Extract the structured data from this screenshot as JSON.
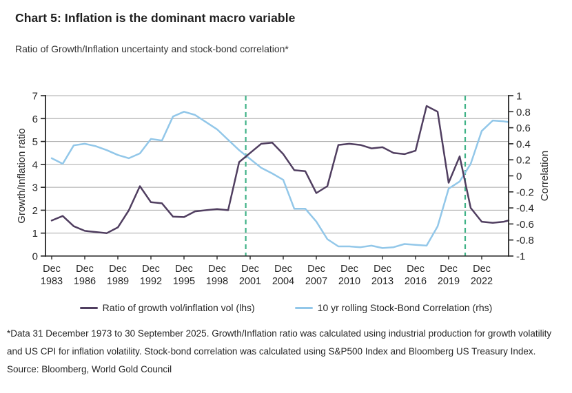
{
  "title": "Chart 5: Inflation is the dominant macro variable",
  "subtitle": "Ratio of Growth/Inflation uncertainty and stock-bond correlation*",
  "footnote": "*Data 31 December 1973 to 30 September 2025. Growth/Inflation ratio was calculated using industrial production for growth volatility and US CPI for inflation volatility. Stock-bond correlation was calculated using S&P500 Index and Bloomberg US Treasury Index.",
  "source": "Source: Bloomberg, World Gold Council",
  "colors": {
    "ratio_line": "#503e60",
    "correlation_line": "#92c7e9",
    "event_line": "#3fb287",
    "gridline": "#a8a8a8",
    "axis": "#262626",
    "text": "#262626"
  },
  "chart_data": {
    "type": "line",
    "x_unit": "December observation of each year; final point is 30 September 2025 (x = 2024.75)",
    "x": [
      1983,
      1984,
      1985,
      1986,
      1987,
      1988,
      1989,
      1990,
      1991,
      1992,
      1993,
      1994,
      1995,
      1996,
      1997,
      1998,
      1999,
      2000,
      2001,
      2002,
      2003,
      2004,
      2005,
      2006,
      2007,
      2008,
      2009,
      2010,
      2011,
      2012,
      2013,
      2014,
      2015,
      2016,
      2017,
      2018,
      2019,
      2020,
      2021,
      2022,
      2023,
      2024,
      2024.75
    ],
    "dates": [
      "Dec 1983",
      "Dec 1984",
      "Dec 1985",
      "Dec 1986",
      "Dec 1987",
      "Dec 1988",
      "Dec 1989",
      "Dec 1990",
      "Dec 1991",
      "Dec 1992",
      "Dec 1993",
      "Dec 1994",
      "Dec 1995",
      "Dec 1996",
      "Dec 1997",
      "Dec 1998",
      "Dec 1999",
      "Dec 2000",
      "Dec 2001",
      "Dec 2002",
      "Dec 2003",
      "Dec 2004",
      "Dec 2005",
      "Dec 2006",
      "Dec 2007",
      "Dec 2008",
      "Dec 2009",
      "Dec 2010",
      "Dec 2011",
      "Dec 2012",
      "Dec 2013",
      "Dec 2014",
      "Dec 2015",
      "Dec 2016",
      "Dec 2017",
      "Dec 2018",
      "Dec 2019",
      "Dec 2020",
      "Dec 2021",
      "Dec 2022",
      "Dec 2023",
      "Dec 2024",
      "Sep 2025"
    ],
    "series": [
      {
        "name": "Ratio of growth vol/inflation vol (lhs)",
        "axis": "left",
        "color": "#503e60",
        "values": [
          1.55,
          1.75,
          1.3,
          1.1,
          1.05,
          1.0,
          1.25,
          2.0,
          3.05,
          2.35,
          2.3,
          1.72,
          1.7,
          1.95,
          2.0,
          2.05,
          2.0,
          4.1,
          4.5,
          4.9,
          4.95,
          4.45,
          3.75,
          3.7,
          2.75,
          3.05,
          4.85,
          4.9,
          4.85,
          4.7,
          4.75,
          4.5,
          4.45,
          4.6,
          6.55,
          6.3,
          3.2,
          4.35,
          2.1,
          1.5,
          1.45,
          1.5,
          1.55
        ]
      },
      {
        "name": "10 yr rolling Stock-Bond Correlation (rhs)",
        "axis": "right",
        "color": "#92c7e9",
        "values": [
          0.22,
          0.15,
          0.38,
          0.4,
          0.37,
          0.32,
          0.26,
          0.22,
          0.28,
          0.46,
          0.44,
          0.74,
          0.8,
          0.76,
          0.67,
          0.58,
          0.45,
          0.32,
          0.21,
          0.1,
          0.03,
          -0.05,
          -0.41,
          -0.41,
          -0.57,
          -0.79,
          -0.88,
          -0.88,
          -0.89,
          -0.87,
          -0.9,
          -0.89,
          -0.85,
          -0.86,
          -0.87,
          -0.63,
          -0.16,
          -0.07,
          0.15,
          0.56,
          0.69,
          0.68,
          0.67
        ]
      }
    ],
    "left_axis": {
      "label": "Growth/Inflation ratio",
      "min": 0,
      "max": 7,
      "ticks": [
        0,
        1,
        2,
        3,
        4,
        5,
        6,
        7
      ]
    },
    "right_axis": {
      "label": "Correlation",
      "min": -1,
      "max": 1,
      "ticks": [
        1,
        0.8,
        0.6,
        0.4,
        0.2,
        0,
        -0.2,
        -0.4,
        -0.6,
        -0.8,
        -1
      ]
    },
    "x_axis": {
      "tick_prefix": "Dec",
      "tick_years": [
        1983,
        1986,
        1989,
        1992,
        1995,
        1998,
        2001,
        2004,
        2007,
        2010,
        2013,
        2016,
        2019,
        2022
      ]
    },
    "event_lines": {
      "style": "dashed-vertical",
      "color": "#3fb287",
      "x": [
        2000.6,
        2020.5
      ]
    },
    "grid": "horizontal",
    "legend_position": "bottom"
  }
}
